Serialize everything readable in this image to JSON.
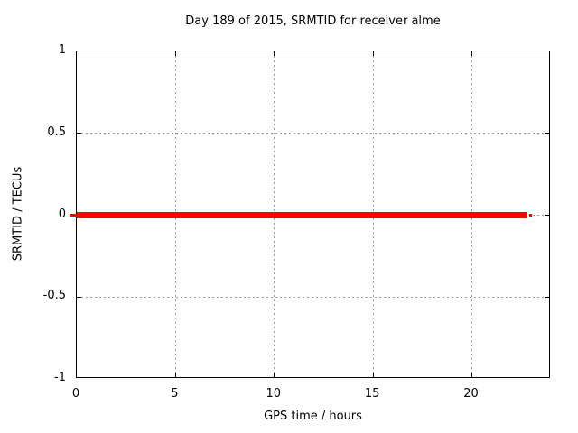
{
  "chart_data": {
    "type": "line",
    "title": "Day 189 of 2015, SRMTID for receiver alme",
    "xlabel": "GPS time / hours",
    "ylabel": "SRMTID / TECUs",
    "xlim": [
      0,
      24
    ],
    "ylim": [
      -1,
      1
    ],
    "grid": true,
    "legend": "none",
    "x_ticks": [
      {
        "value": 0,
        "label": "0"
      },
      {
        "value": 5,
        "label": "5"
      },
      {
        "value": 10,
        "label": "10"
      },
      {
        "value": 15,
        "label": "15"
      },
      {
        "value": 20,
        "label": "20"
      }
    ],
    "y_ticks": [
      {
        "value": -1,
        "label": "-1"
      },
      {
        "value": -0.5,
        "label": "-0.5"
      },
      {
        "value": 0,
        "label": "0"
      },
      {
        "value": 0.5,
        "label": "0.5"
      },
      {
        "value": 1,
        "label": "1"
      }
    ],
    "series": [
      {
        "name": "SRMTID",
        "color": "#ff0000",
        "style": "thick-horizontal-line",
        "x_start": 0,
        "x_end": 22.8,
        "y": 0
      }
    ]
  },
  "colors": {
    "background": "#ffffff",
    "border": "#000000",
    "grid": "#9e9e9e",
    "series": "#ff0000",
    "text": "#000000"
  }
}
